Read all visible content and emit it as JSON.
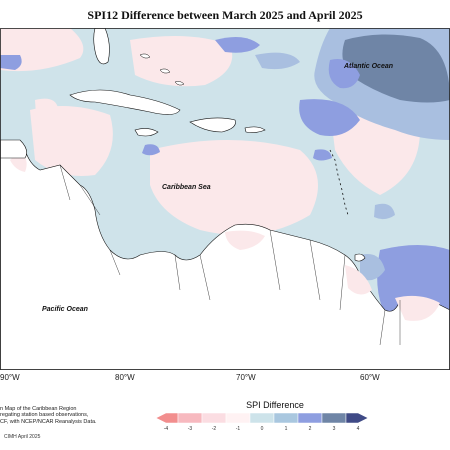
{
  "title": "SPI12 Difference between March 2025 and April 2025",
  "labels": {
    "atlantic": "Atlantic Ocean",
    "caribbean": "Caribbean Sea",
    "pacific": "Pacific Ocean"
  },
  "longitude_ticks": [
    "90°W",
    "80°W",
    "70°W",
    "60°W"
  ],
  "footnote": [
    "n Map of the Caribbean Region",
    "regating station based observations,",
    "CF, with NCEP/NCAR Reanalysis Data."
  ],
  "credit": "CIMH April 2025",
  "legend": {
    "title": "SPI Difference",
    "ticks": [
      "-4",
      "-3",
      "-2",
      "-1",
      "0",
      "1",
      "2",
      "3",
      "4"
    ],
    "colors": [
      "#f28e8e",
      "#f7b9bf",
      "#fbdde2",
      "#fff2f3",
      "#cde3ea",
      "#a9c7df",
      "#8e9ee0",
      "#6f85a6",
      "#3f4a86"
    ]
  }
}
